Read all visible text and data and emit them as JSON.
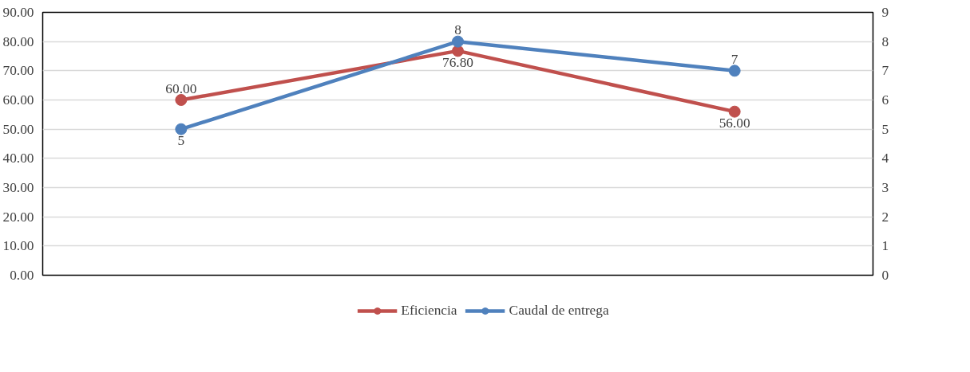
{
  "chart_data": {
    "type": "line",
    "categories": [
      null,
      null,
      null
    ],
    "series": [
      {
        "name": "Eficiencia",
        "color": "#c0504d",
        "values": [
          60,
          76.8,
          56
        ],
        "value_labels": [
          "60.00",
          "76.80",
          "56.00"
        ]
      },
      {
        "name": "Caudal de entrega",
        "color": "#4f81bd",
        "values": [
          5,
          8,
          7
        ],
        "value_labels": [
          "5",
          "8",
          "7"
        ],
        "axis": "y2"
      }
    ],
    "ylim": [
      0,
      90
    ],
    "yticks": [
      {
        "value": 0,
        "label": "0.00"
      },
      {
        "value": 10,
        "label": "10.00"
      },
      {
        "value": 20,
        "label": "20.00"
      },
      {
        "value": 30,
        "label": "30.00"
      },
      {
        "value": 40,
        "label": "40.00"
      },
      {
        "value": 50,
        "label": "50.00"
      },
      {
        "value": 60,
        "label": "60.00"
      },
      {
        "value": 70,
        "label": "70.00"
      },
      {
        "value": 80,
        "label": "80.00"
      },
      {
        "value": 90,
        "label": "90.00"
      }
    ],
    "y2lim": [
      0,
      9
    ],
    "y2ticks": [
      0,
      1,
      2,
      3,
      4,
      5,
      6,
      7,
      8,
      9
    ],
    "grid": "y",
    "legend": "bottom",
    "marker": "circle",
    "line_style": "solid",
    "tick_labels": "y"
  }
}
